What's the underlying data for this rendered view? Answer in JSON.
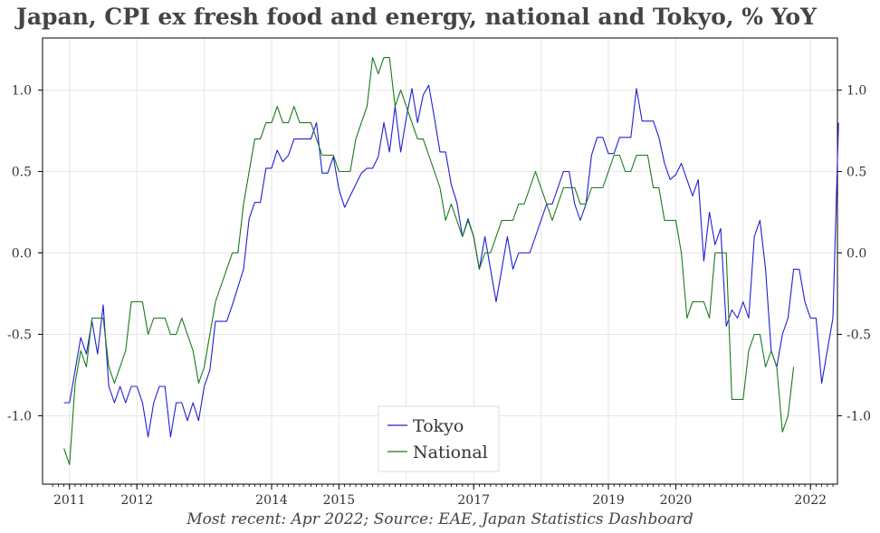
{
  "title": "Japan, CPI ex fresh food and energy, national and Tokyo,  % YoY",
  "source": "Most recent: Apr 2022; Source: EAE, Japan Statistics Dashboard",
  "chart_data": {
    "type": "line",
    "title": "Japan, CPI ex fresh food and energy, national and Tokyo,  % YoY",
    "xlabel": "",
    "ylabel": "",
    "xlim": [
      2010.6,
      2022.4
    ],
    "ylim": [
      -1.42,
      1.32
    ],
    "x_ticks": [
      2011,
      2012,
      2014,
      2015,
      2017,
      2019,
      2020,
      2022
    ],
    "x_tick_positions": [
      2011.0,
      2012.0,
      2013.0,
      2014.0,
      2015.0,
      2016.0,
      2017.0,
      2018.0,
      2019.0,
      2020.0,
      2021.0,
      2022.0
    ],
    "x_tick_labels": [
      "2011",
      "2012",
      "2014",
      "2015",
      "2017",
      "2019",
      "2020",
      "2022"
    ],
    "y_ticks": [
      -1.0,
      -0.5,
      0.0,
      0.5,
      1.0
    ],
    "y_tick_labels": [
      "-1.0",
      "-0.5",
      "0.0",
      "0.5",
      "1.0"
    ],
    "grid": true,
    "legend": "bottom-center",
    "x_start": 2010.9167,
    "x_step": 0.08333,
    "series": [
      {
        "name": "Tokyo",
        "color": "#1f1fd6",
        "values": [
          -0.92,
          -0.92,
          -0.72,
          -0.52,
          -0.62,
          -0.42,
          -0.62,
          -0.32,
          -0.82,
          -0.92,
          -0.82,
          -0.92,
          -0.82,
          -0.82,
          -0.92,
          -1.13,
          -0.92,
          -0.82,
          -0.82,
          -1.13,
          -0.92,
          -0.92,
          -1.03,
          -0.92,
          -1.03,
          -0.82,
          -0.72,
          -0.42,
          -0.42,
          -0.42,
          -0.32,
          -0.21,
          -0.1,
          0.21,
          0.31,
          0.31,
          0.52,
          0.52,
          0.63,
          0.56,
          0.6,
          0.7,
          0.7,
          0.7,
          0.7,
          0.8,
          0.49,
          0.49,
          0.59,
          0.39,
          0.28,
          0.35,
          0.42,
          0.49,
          0.52,
          0.52,
          0.59,
          0.8,
          0.62,
          0.9,
          0.62,
          0.83,
          1.01,
          0.8,
          0.97,
          1.03,
          0.83,
          0.62,
          0.62,
          0.42,
          0.31,
          0.1,
          0.21,
          0.1,
          -0.1,
          0.1,
          -0.1,
          -0.3,
          -0.1,
          0.1,
          -0.1,
          0.0,
          0.0,
          0.0,
          0.1,
          0.2,
          0.3,
          0.3,
          0.4,
          0.5,
          0.5,
          0.3,
          0.2,
          0.3,
          0.6,
          0.71,
          0.71,
          0.61,
          0.61,
          0.71,
          0.71,
          0.71,
          1.01,
          0.81,
          0.81,
          0.81,
          0.71,
          0.55,
          0.45,
          0.48,
          0.55,
          0.45,
          0.35,
          0.45,
          -0.05,
          0.25,
          0.05,
          0.15,
          -0.45,
          -0.35,
          -0.4,
          -0.3,
          -0.4,
          0.1,
          0.2,
          -0.1,
          -0.6,
          -0.7,
          -0.5,
          -0.4,
          -0.1,
          -0.1,
          -0.3,
          -0.4,
          -0.4,
          -0.8,
          -0.6,
          -0.4,
          0.8
        ]
      },
      {
        "name": "National",
        "color": "#1a7a1a",
        "values": [
          -1.2,
          -1.3,
          -0.8,
          -0.6,
          -0.7,
          -0.4,
          -0.4,
          -0.4,
          -0.7,
          -0.8,
          -0.7,
          -0.6,
          -0.3,
          -0.3,
          -0.3,
          -0.5,
          -0.4,
          -0.4,
          -0.4,
          -0.5,
          -0.5,
          -0.4,
          -0.5,
          -0.6,
          -0.8,
          -0.7,
          -0.5,
          -0.3,
          -0.2,
          -0.1,
          0.0,
          0.0,
          0.3,
          0.5,
          0.7,
          0.7,
          0.8,
          0.8,
          0.9,
          0.8,
          0.8,
          0.9,
          0.8,
          0.8,
          0.8,
          0.7,
          0.6,
          0.6,
          0.6,
          0.5,
          0.5,
          0.5,
          0.7,
          0.8,
          0.9,
          1.2,
          1.1,
          1.2,
          1.2,
          0.9,
          1.0,
          0.9,
          0.8,
          0.7,
          0.7,
          0.6,
          0.5,
          0.4,
          0.2,
          0.3,
          0.2,
          0.1,
          0.2,
          0.1,
          -0.1,
          0.0,
          0.0,
          0.1,
          0.2,
          0.2,
          0.2,
          0.3,
          0.3,
          0.4,
          0.5,
          0.4,
          0.3,
          0.2,
          0.3,
          0.4,
          0.4,
          0.4,
          0.3,
          0.3,
          0.4,
          0.4,
          0.4,
          0.5,
          0.6,
          0.6,
          0.5,
          0.5,
          0.6,
          0.6,
          0.6,
          0.4,
          0.4,
          0.2,
          0.2,
          0.2,
          0.0,
          -0.4,
          -0.3,
          -0.3,
          -0.3,
          -0.4,
          0.0,
          0.0,
          0.0,
          -0.9,
          -0.9,
          -0.9,
          -0.6,
          -0.5,
          -0.5,
          -0.7,
          -0.6,
          -0.7,
          -1.1,
          -1.0,
          -0.7
        ]
      }
    ]
  }
}
